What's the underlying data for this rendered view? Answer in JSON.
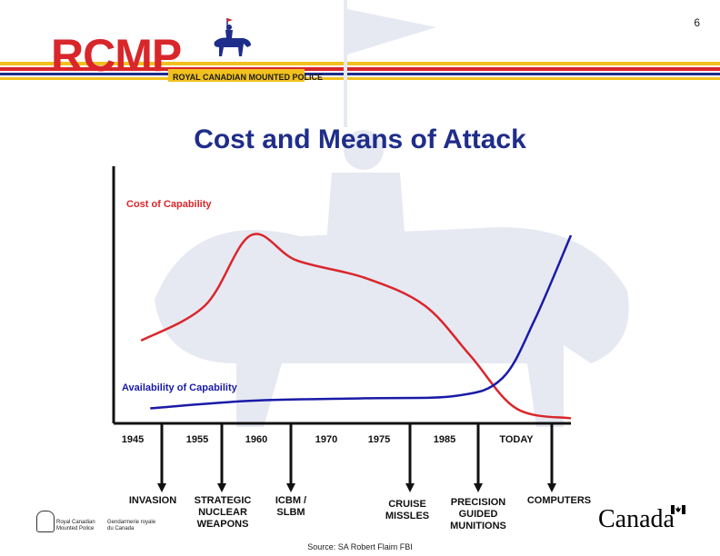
{
  "slide_number": "6",
  "logo": {
    "wordmark": "RCMP",
    "subtitle": "ROYAL CANADIAN MOUNTED POLICE",
    "gov_left": [
      "Royal Canadian",
      "Mounted Police"
    ],
    "gov_right": [
      "Gendarmerie royale",
      "du Canada"
    ],
    "canada": "Canada"
  },
  "title": "Cost and Means of Attack",
  "source": "Source: SA Robert Flaim FBI",
  "colors": {
    "cost": "#d9262b",
    "availability": "#1a1aa8",
    "title": "#1f2d8a",
    "band_red": "#d9262b",
    "band_yellow": "#f2c01e",
    "band_blue": "#1f2d8a"
  },
  "chart_data": {
    "type": "line",
    "x_categories": [
      "1945",
      "1955",
      "1960",
      "1970",
      "1975",
      "1985",
      "TODAY"
    ],
    "milestones": [
      {
        "x": "1945",
        "label": [
          "INVASION"
        ]
      },
      {
        "x": "1955",
        "label": [
          "STRATEGIC",
          "NUCLEAR",
          "WEAPONS"
        ]
      },
      {
        "x": "1960",
        "label": [
          "ICBM /",
          "SLBM"
        ]
      },
      {
        "x": "1975",
        "label": [
          "CRUISE",
          "MISSLES"
        ]
      },
      {
        "x": "1985",
        "label": [
          "PRECISION",
          "GUIDED",
          "MUNITIONS"
        ]
      },
      {
        "x": "TODAY",
        "label": [
          "COMPUTERS"
        ]
      }
    ],
    "series": [
      {
        "name": "Cost of Capability",
        "points": [
          [
            0.06,
            0.33
          ],
          [
            0.2,
            0.47
          ],
          [
            0.3,
            0.75
          ],
          [
            0.4,
            0.65
          ],
          [
            0.55,
            0.58
          ],
          [
            0.68,
            0.47
          ],
          [
            0.78,
            0.27
          ],
          [
            0.88,
            0.06
          ],
          [
            1.0,
            0.02
          ]
        ]
      },
      {
        "name": "Availability of Capability",
        "points": [
          [
            0.08,
            0.06
          ],
          [
            0.3,
            0.09
          ],
          [
            0.55,
            0.1
          ],
          [
            0.75,
            0.11
          ],
          [
            0.85,
            0.18
          ],
          [
            0.92,
            0.41
          ],
          [
            1.0,
            0.75
          ]
        ]
      }
    ],
    "ylabel": "",
    "xlabel": ""
  }
}
